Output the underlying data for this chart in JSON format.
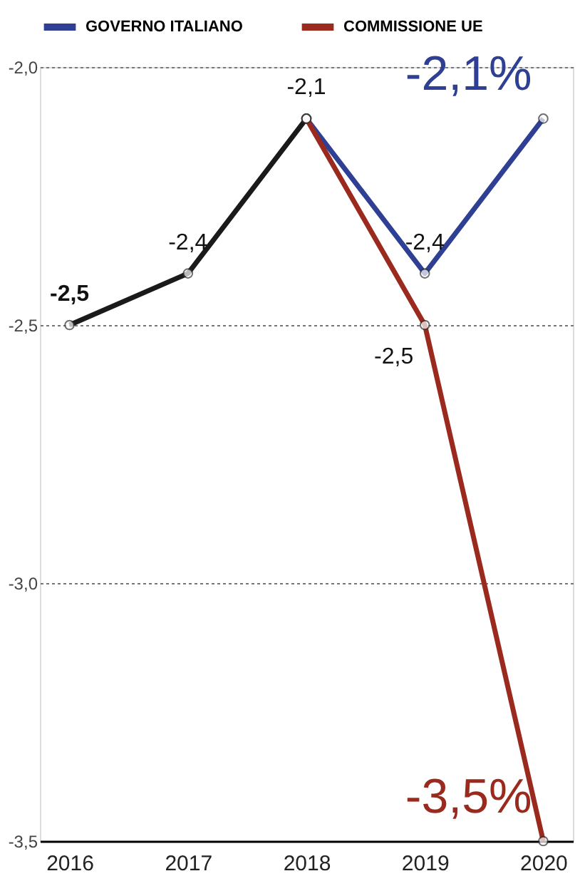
{
  "chart_data": {
    "type": "line",
    "categories": [
      "2016",
      "2017",
      "2018",
      "2019",
      "2020"
    ],
    "series": [
      {
        "color": "#1a1a1a",
        "values": [
          -2.5,
          -2.4,
          -2.1,
          null,
          null
        ],
        "value_labels": [
          "-2,5",
          "-2,4",
          "-2,1",
          null,
          null
        ]
      },
      {
        "name": "GOVERNO ITALIANO",
        "color": "#2e3f94",
        "values": [
          null,
          null,
          -2.1,
          -2.4,
          -2.1
        ],
        "value_labels": [
          null,
          null,
          null,
          "-2,4",
          "-2,1%"
        ]
      },
      {
        "name": "COMMISSIONE UE",
        "color": "#9b2a1e",
        "values": [
          null,
          null,
          -2.1,
          -2.5,
          -3.5
        ],
        "value_labels": [
          null,
          null,
          null,
          "-2,5",
          "-3,5%"
        ]
      }
    ],
    "ylim": [
      -3.5,
      -2.0
    ],
    "yticks": [
      {
        "value": -2.0,
        "label": "-2,0"
      },
      {
        "value": -2.5,
        "label": "-2,5"
      },
      {
        "value": -3.0,
        "label": "-3,0"
      },
      {
        "value": -3.5,
        "label": "-3,5"
      }
    ],
    "grid": "y",
    "legend": "top",
    "marker": "circle",
    "line_style": "solid"
  }
}
